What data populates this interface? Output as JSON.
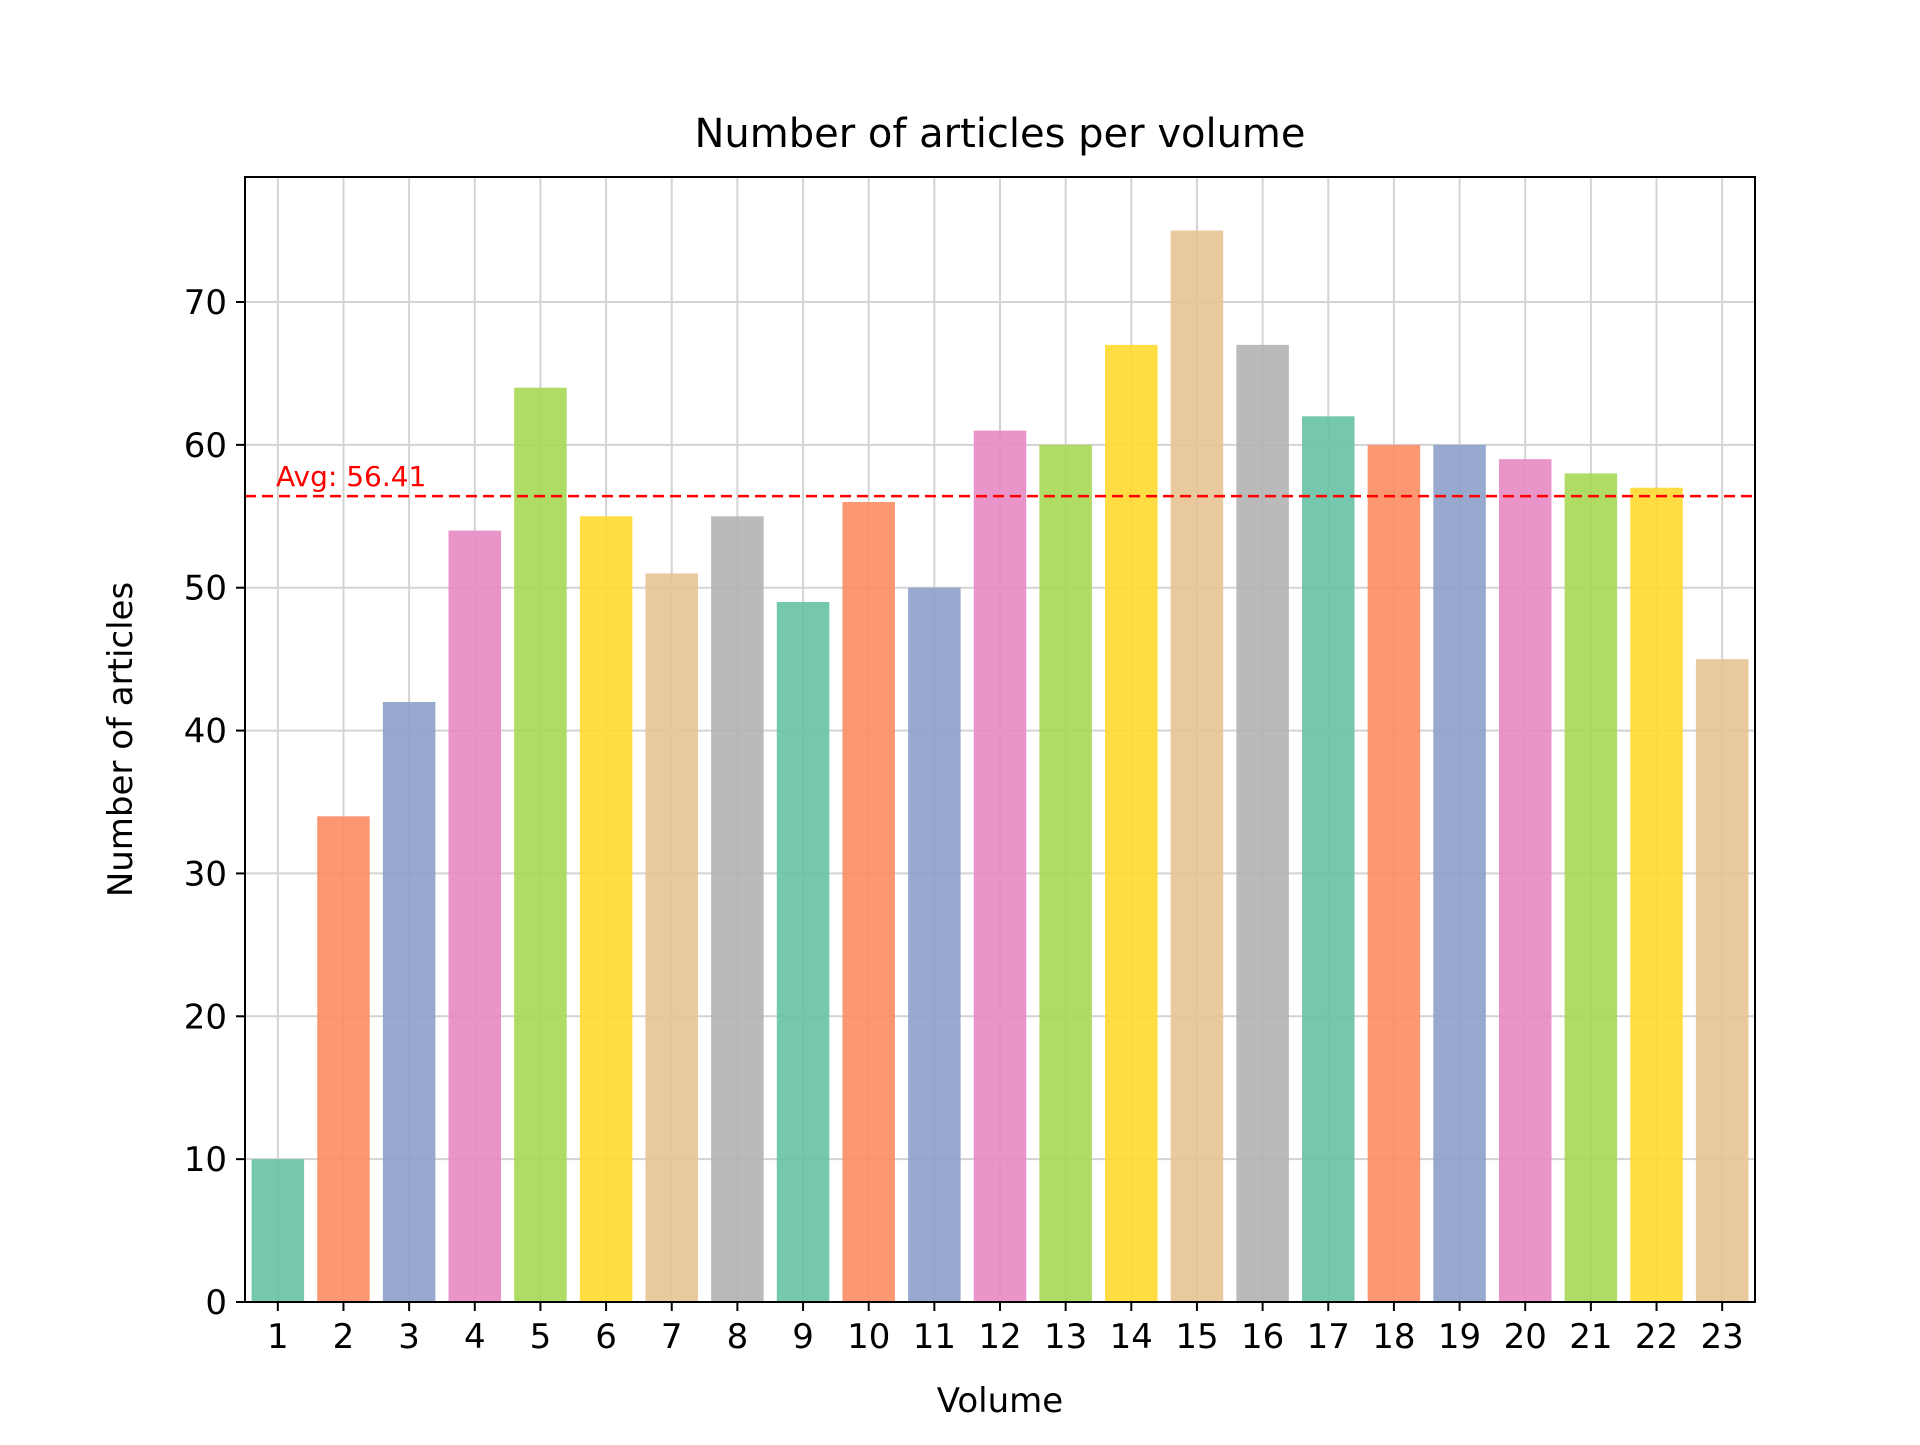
{
  "chart_data": {
    "type": "bar",
    "title": "Number of articles per volume",
    "xlabel": "Volume",
    "ylabel": "Number of articles",
    "categories": [
      "1",
      "2",
      "3",
      "4",
      "5",
      "6",
      "7",
      "8",
      "9",
      "10",
      "11",
      "12",
      "13",
      "14",
      "15",
      "16",
      "17",
      "18",
      "19",
      "20",
      "21",
      "22",
      "23"
    ],
    "values": [
      10,
      34,
      42,
      54,
      64,
      55,
      51,
      55,
      49,
      56,
      50,
      61,
      60,
      67,
      75,
      67,
      62,
      60,
      60,
      59,
      58,
      57,
      45
    ],
    "colors": [
      "#66c2a5",
      "#fc8d62",
      "#8da0cb",
      "#e78ac3",
      "#a6d854",
      "#ffd92f",
      "#e5c494",
      "#b3b3b3"
    ],
    "ylim": [
      0,
      78.75
    ],
    "yticks": [
      0,
      10,
      20,
      30,
      40,
      50,
      60,
      70
    ],
    "grid": true,
    "average": {
      "value": 56.41,
      "label": "Avg: 56.41",
      "color": "#ff0000",
      "style": "dashed"
    }
  }
}
